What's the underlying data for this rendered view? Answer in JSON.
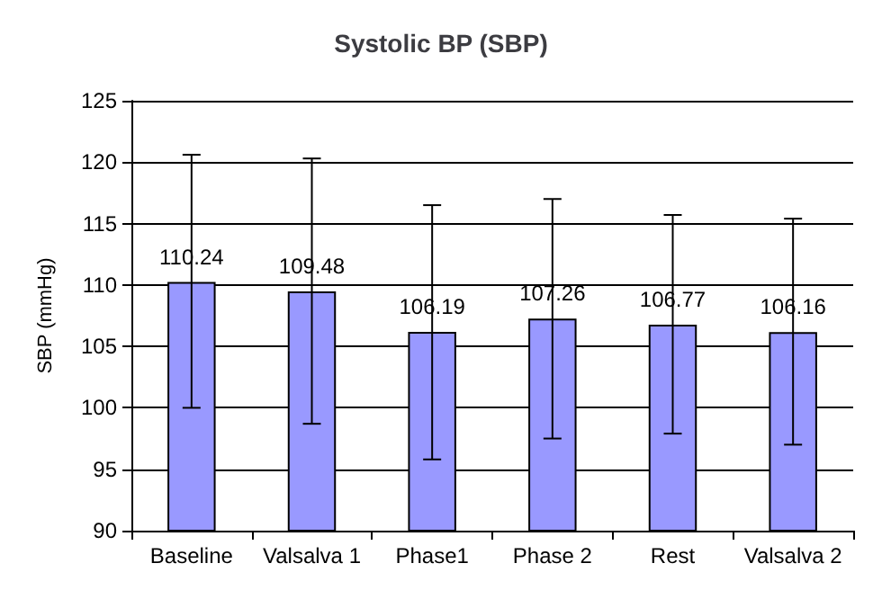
{
  "chart_data": {
    "type": "bar",
    "title": "Systolic BP (SBP)",
    "ylabel": "SBP (mmHg)",
    "categories": [
      "Baseline",
      "Valsalva 1",
      "Phase1",
      "Phase 2",
      "Rest",
      "Valsalva 2"
    ],
    "values": [
      110.24,
      109.48,
      106.19,
      107.26,
      106.77,
      106.16
    ],
    "errors": [
      [
        100,
        120.6
      ],
      [
        98.7,
        120.3
      ],
      [
        95.8,
        116.5
      ],
      [
        97.5,
        117
      ],
      [
        97.9,
        115.7
      ],
      [
        97,
        115.4
      ]
    ],
    "color": "#9999ff",
    "ylim": [
      90,
      125
    ],
    "yticks": [
      90,
      95,
      100,
      105,
      110,
      115,
      120,
      125
    ],
    "grid": "y",
    "data_labels": true
  }
}
